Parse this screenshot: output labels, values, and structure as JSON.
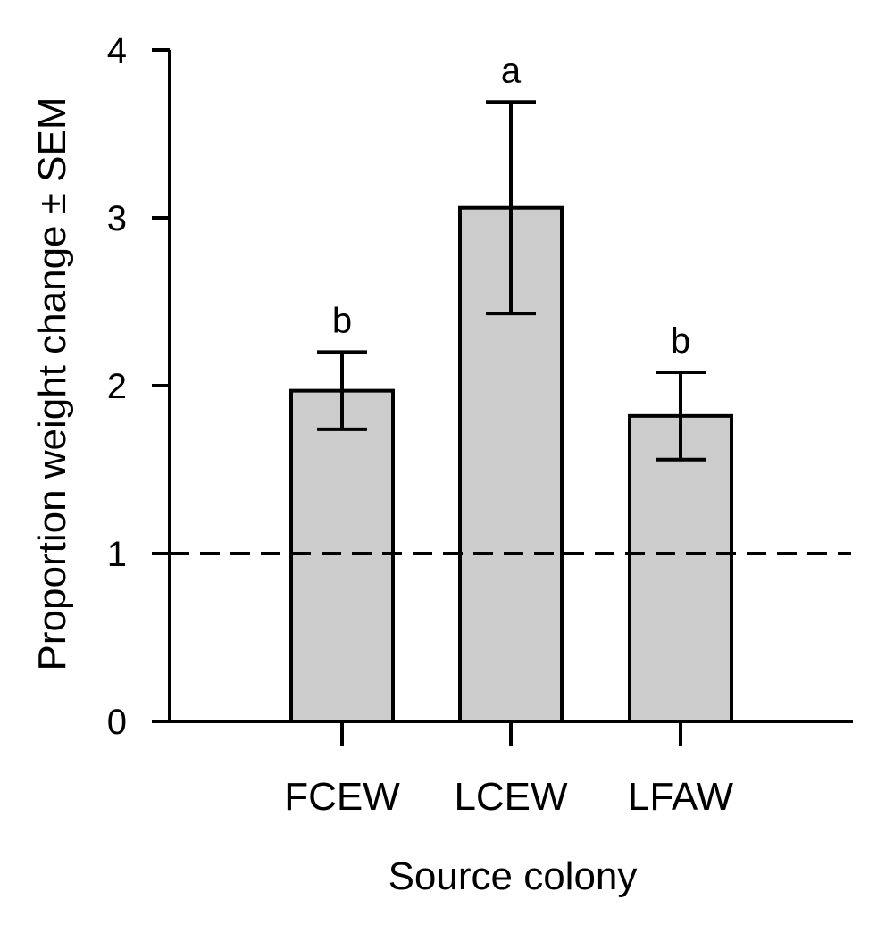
{
  "chart_data": {
    "type": "bar",
    "title": "",
    "xlabel": "Source colony",
    "ylabel": "Proportion weight change ± SEM",
    "categories": [
      "FCEW",
      "LCEW",
      "LFAW"
    ],
    "values": [
      1.97,
      3.06,
      1.82
    ],
    "error": [
      0.23,
      0.63,
      0.26
    ],
    "significance_letters": [
      "b",
      "a",
      "b"
    ],
    "ylim": [
      0,
      4
    ],
    "yticks": [
      "0",
      "1",
      "2",
      "3",
      "4"
    ],
    "reference_line": {
      "y": 1,
      "style": "dashed"
    },
    "grid": false,
    "bar_color": "#cccccc",
    "edge_color": "#000000"
  }
}
